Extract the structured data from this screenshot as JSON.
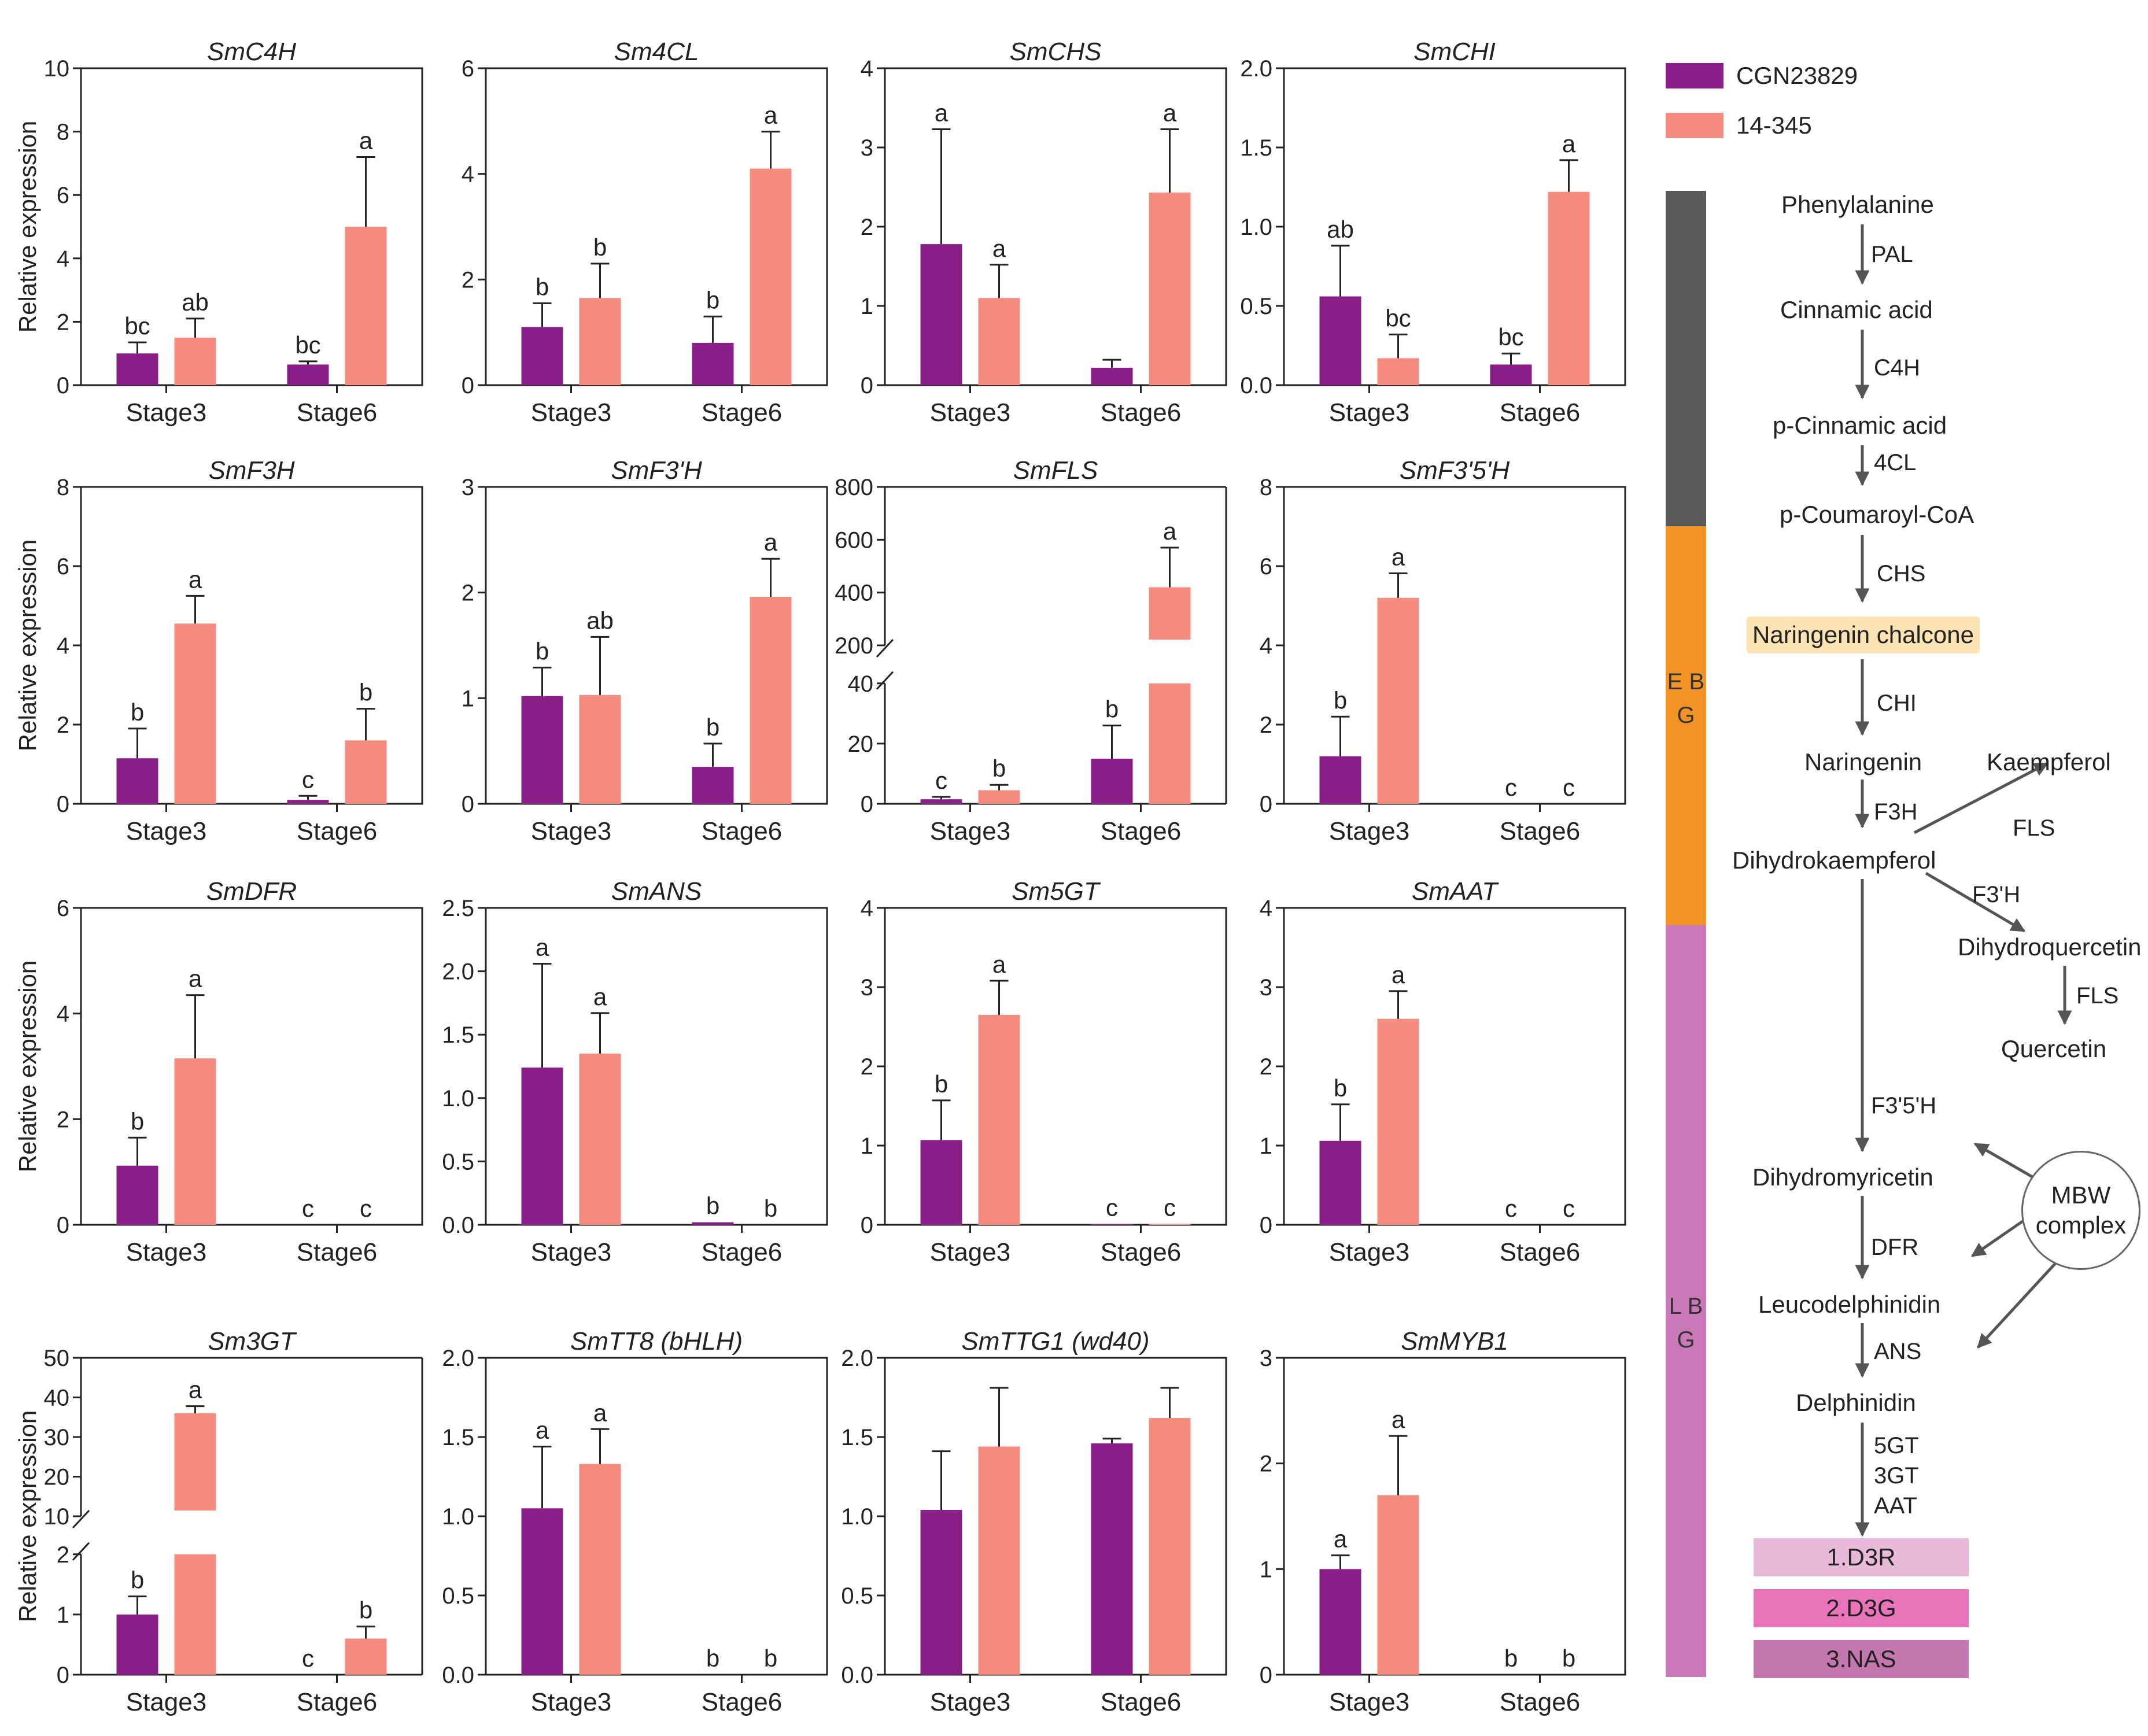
{
  "legend": {
    "series1": {
      "label": "CGN23829",
      "color": "#8a1f8a"
    },
    "series2": {
      "label": "14-345",
      "color": "#f58a7e"
    }
  },
  "ylabel": "Relative expression",
  "chart_data": [
    {
      "type": "bar",
      "title": "SmC4H",
      "categories": [
        "Stage3",
        "Stage6"
      ],
      "ylim": [
        0,
        10
      ],
      "ticks": [
        0,
        2,
        4,
        6,
        8,
        10
      ],
      "series": [
        {
          "name": "CGN23829",
          "values": [
            1.0,
            0.65
          ]
        },
        {
          "name": "14-345",
          "values": [
            1.5,
            5.0
          ]
        }
      ],
      "errors": [
        [
          0.35,
          0.1
        ],
        [
          0.6,
          2.2
        ]
      ],
      "letters": [
        [
          "bc",
          "bc"
        ],
        [
          "ab",
          "a"
        ]
      ]
    },
    {
      "type": "bar",
      "title": "Sm4CL",
      "categories": [
        "Stage3",
        "Stage6"
      ],
      "ylim": [
        0,
        6
      ],
      "ticks": [
        0,
        2,
        4,
        6
      ],
      "series": [
        {
          "name": "CGN23829",
          "values": [
            1.1,
            0.8
          ]
        },
        {
          "name": "14-345",
          "values": [
            1.65,
            4.1
          ]
        }
      ],
      "errors": [
        [
          0.45,
          0.5
        ],
        [
          0.65,
          0.7
        ]
      ],
      "letters": [
        [
          "b",
          "b"
        ],
        [
          "b",
          "a"
        ]
      ]
    },
    {
      "type": "bar",
      "title": "SmCHS",
      "categories": [
        "Stage3",
        "Stage6"
      ],
      "ylim": [
        0,
        4
      ],
      "ticks": [
        0,
        1,
        2,
        3,
        4
      ],
      "series": [
        {
          "name": "CGN23829",
          "values": [
            1.78,
            0.22
          ]
        },
        {
          "name": "14-345",
          "values": [
            1.1,
            2.43
          ]
        }
      ],
      "errors": [
        [
          1.45,
          0.1
        ],
        [
          0.42,
          0.8
        ]
      ],
      "letters": [
        [
          "a",
          ""
        ],
        [
          "a",
          "a"
        ]
      ]
    },
    {
      "type": "bar",
      "title": "SmCHI",
      "categories": [
        "Stage3",
        "Stage6"
      ],
      "ylim": [
        0,
        2
      ],
      "ticks": [
        0,
        0.5,
        1.0,
        1.5,
        2.0
      ],
      "tickFmt": 1,
      "series": [
        {
          "name": "CGN23829",
          "values": [
            0.56,
            0.13
          ]
        },
        {
          "name": "14-345",
          "values": [
            0.17,
            1.22
          ]
        }
      ],
      "errors": [
        [
          0.32,
          0.07
        ],
        [
          0.15,
          0.2
        ]
      ],
      "letters": [
        [
          "ab",
          "bc"
        ],
        [
          "bc",
          "a"
        ]
      ]
    },
    {
      "type": "bar",
      "title": "SmF3H",
      "categories": [
        "Stage3",
        "Stage6"
      ],
      "ylim": [
        0,
        8
      ],
      "ticks": [
        0,
        2,
        4,
        6,
        8
      ],
      "series": [
        {
          "name": "CGN23829",
          "values": [
            1.15,
            0.1
          ]
        },
        {
          "name": "14-345",
          "values": [
            4.55,
            1.6
          ]
        }
      ],
      "errors": [
        [
          0.75,
          0.1
        ],
        [
          0.7,
          0.8
        ]
      ],
      "letters": [
        [
          "b",
          "c"
        ],
        [
          "a",
          "b"
        ]
      ]
    },
    {
      "type": "bar",
      "title": "SmF3'H",
      "categories": [
        "Stage3",
        "Stage6"
      ],
      "ylim": [
        0,
        3
      ],
      "ticks": [
        0,
        1,
        2,
        3
      ],
      "series": [
        {
          "name": "CGN23829",
          "values": [
            1.02,
            0.35
          ]
        },
        {
          "name": "14-345",
          "values": [
            1.03,
            1.96
          ]
        }
      ],
      "errors": [
        [
          0.27,
          0.22
        ],
        [
          0.55,
          0.36
        ]
      ],
      "letters": [
        [
          "b",
          "b"
        ],
        [
          "ab",
          "a"
        ]
      ]
    },
    {
      "type": "bar",
      "title": "SmFLS",
      "categories": [
        "Stage3",
        "Stage6"
      ],
      "broken": true,
      "lowTicks": [
        0,
        20,
        40
      ],
      "highTicks": [
        200,
        400,
        600,
        800
      ],
      "series": [
        {
          "name": "CGN23829",
          "values": [
            1.5,
            15
          ]
        },
        {
          "name": "14-345",
          "values": [
            4.5,
            420
          ]
        }
      ],
      "errors": [
        [
          0.8,
          11
        ],
        [
          1.8,
          150
        ]
      ],
      "letters": [
        [
          "c",
          "b"
        ],
        [
          "b",
          "a"
        ]
      ]
    },
    {
      "type": "bar",
      "title": "SmF3'5'H",
      "categories": [
        "Stage3",
        "Stage6"
      ],
      "ylim": [
        0,
        8
      ],
      "ticks": [
        0,
        2,
        4,
        6,
        8
      ],
      "series": [
        {
          "name": "CGN23829",
          "values": [
            1.2,
            0
          ]
        },
        {
          "name": "14-345",
          "values": [
            5.2,
            0
          ]
        }
      ],
      "errors": [
        [
          1.0,
          0
        ],
        [
          0.62,
          0
        ]
      ],
      "letters": [
        [
          "b",
          "c"
        ],
        [
          "a",
          "c"
        ]
      ]
    },
    {
      "type": "bar",
      "title": "SmDFR",
      "categories": [
        "Stage3",
        "Stage6"
      ],
      "ylim": [
        0,
        6
      ],
      "ticks": [
        0,
        2,
        4,
        6
      ],
      "series": [
        {
          "name": "CGN23829",
          "values": [
            1.12,
            0
          ]
        },
        {
          "name": "14-345",
          "values": [
            3.15,
            0
          ]
        }
      ],
      "errors": [
        [
          0.53,
          0
        ],
        [
          1.2,
          0
        ]
      ],
      "letters": [
        [
          "b",
          "c"
        ],
        [
          "a",
          "c"
        ]
      ]
    },
    {
      "type": "bar",
      "title": "SmANS",
      "categories": [
        "Stage3",
        "Stage6"
      ],
      "ylim": [
        0,
        2.5
      ],
      "ticks": [
        0,
        0.5,
        1.0,
        1.5,
        2.0,
        2.5
      ],
      "tickFmt": 1,
      "series": [
        {
          "name": "CGN23829",
          "values": [
            1.24,
            0.02
          ]
        },
        {
          "name": "14-345",
          "values": [
            1.35,
            0
          ]
        }
      ],
      "errors": [
        [
          0.82,
          0
        ],
        [
          0.32,
          0
        ]
      ],
      "letters": [
        [
          "a",
          "b"
        ],
        [
          "a",
          "b"
        ]
      ]
    },
    {
      "type": "bar",
      "title": "Sm5GT",
      "categories": [
        "Stage3",
        "Stage6"
      ],
      "ylim": [
        0,
        4
      ],
      "ticks": [
        0,
        1,
        2,
        3,
        4
      ],
      "series": [
        {
          "name": "CGN23829",
          "values": [
            1.07,
            0.01
          ]
        },
        {
          "name": "14-345",
          "values": [
            2.65,
            0.01
          ]
        }
      ],
      "errors": [
        [
          0.5,
          0
        ],
        [
          0.43,
          0
        ]
      ],
      "letters": [
        [
          "b",
          "c"
        ],
        [
          "a",
          "c"
        ]
      ]
    },
    {
      "type": "bar",
      "title": "SmAAT",
      "categories": [
        "Stage3",
        "Stage6"
      ],
      "ylim": [
        0,
        4
      ],
      "ticks": [
        0,
        1,
        2,
        3,
        4
      ],
      "series": [
        {
          "name": "CGN23829",
          "values": [
            1.06,
            0
          ]
        },
        {
          "name": "14-345",
          "values": [
            2.6,
            0
          ]
        }
      ],
      "errors": [
        [
          0.46,
          0
        ],
        [
          0.35,
          0
        ]
      ],
      "letters": [
        [
          "b",
          "c"
        ],
        [
          "a",
          "c"
        ]
      ]
    },
    {
      "type": "bar",
      "title": "Sm3GT",
      "categories": [
        "Stage3",
        "Stage6"
      ],
      "broken": true,
      "lowTicks": [
        0,
        1,
        2
      ],
      "highTicks": [
        10,
        20,
        30,
        40,
        50
      ],
      "series": [
        {
          "name": "CGN23829",
          "values": [
            1.0,
            0
          ]
        },
        {
          "name": "14-345",
          "values": [
            36,
            0.6
          ]
        }
      ],
      "errors": [
        [
          0.3,
          0
        ],
        [
          1.8,
          0.2
        ]
      ],
      "letters": [
        [
          "b",
          "c"
        ],
        [
          "a",
          "b"
        ]
      ]
    },
    {
      "type": "bar",
      "title": "SmTT8 (bHLH)",
      "categories": [
        "Stage3",
        "Stage6"
      ],
      "ylim": [
        0,
        2
      ],
      "ticks": [
        0,
        0.5,
        1.0,
        1.5,
        2.0
      ],
      "tickFmt": 1,
      "series": [
        {
          "name": "CGN23829",
          "values": [
            1.05,
            0
          ]
        },
        {
          "name": "14-345",
          "values": [
            1.33,
            0
          ]
        }
      ],
      "errors": [
        [
          0.39,
          0
        ],
        [
          0.22,
          0
        ]
      ],
      "letters": [
        [
          "a",
          "b"
        ],
        [
          "a",
          "b"
        ]
      ]
    },
    {
      "type": "bar",
      "title": "SmTTG1 (wd40)",
      "categories": [
        "Stage3",
        "Stage6"
      ],
      "ylim": [
        0,
        2
      ],
      "ticks": [
        0,
        0.5,
        1.0,
        1.5,
        2.0
      ],
      "tickFmt": 1,
      "series": [
        {
          "name": "CGN23829",
          "values": [
            1.04,
            1.46
          ]
        },
        {
          "name": "14-345",
          "values": [
            1.44,
            1.62
          ]
        }
      ],
      "errors": [
        [
          0.37,
          0.03
        ],
        [
          0.37,
          0.19
        ]
      ],
      "letters": [
        [
          "",
          ""
        ],
        [
          "",
          ""
        ]
      ]
    },
    {
      "type": "bar",
      "title": "SmMYB1",
      "categories": [
        "Stage3",
        "Stage6"
      ],
      "ylim": [
        0,
        3
      ],
      "ticks": [
        0,
        1,
        2,
        3
      ],
      "series": [
        {
          "name": "CGN23829",
          "values": [
            1.0,
            0
          ]
        },
        {
          "name": "14-345",
          "values": [
            1.7,
            0
          ]
        }
      ],
      "errors": [
        [
          0.13,
          0
        ],
        [
          0.56,
          0
        ]
      ],
      "letters": [
        [
          "a",
          "b"
        ],
        [
          "a",
          "b"
        ]
      ]
    }
  ],
  "pathway": {
    "stages": [
      {
        "label": "",
        "color": "#595959"
      },
      {
        "label": "E B G",
        "color": "#f39325"
      },
      {
        "label": "L B G",
        "color": "#c979b7"
      }
    ],
    "nodes": {
      "phenylalanine": "Phenylalanine",
      "cinnamic": "Cinnamic acid",
      "pcinnamic": "p-Cinnamic acid",
      "pcoumaroyl": "p-Coumaroyl-CoA",
      "chalcone": "Naringenin chalcone",
      "naringenin": "Naringenin",
      "kaempferol": "Kaempferol",
      "dihydrokaempferol": "Dihydrokaempferol",
      "dihydroquercetin": "Dihydroquercetin",
      "quercetin": "Quercetin",
      "dihydromyricetin": "Dihydromyricetin",
      "leucodelphinidin": "Leucodelphinidin",
      "delphinidin": "Delphinidin"
    },
    "enzymes": {
      "pal": "PAL",
      "c4h": "C4H",
      "cl4": "4CL",
      "chs": "CHS",
      "chi": "CHI",
      "f3h": "F3H",
      "fls1": "FLS",
      "f3ph": "F3'H",
      "fls2": "FLS",
      "f35h": "F3'5'H",
      "dfr": "DFR",
      "ans": "ANS",
      "gt5": "5GT",
      "gt3": "3GT",
      "aat": "AAT"
    },
    "mbw": {
      "line1": "MBW",
      "line2": "complex"
    },
    "products": [
      {
        "label": "1.D3R",
        "color": "#e8b9d9"
      },
      {
        "label": "2.D3G",
        "color": "#e874b9"
      },
      {
        "label": "3.NAS",
        "color": "#c476af"
      }
    ]
  }
}
